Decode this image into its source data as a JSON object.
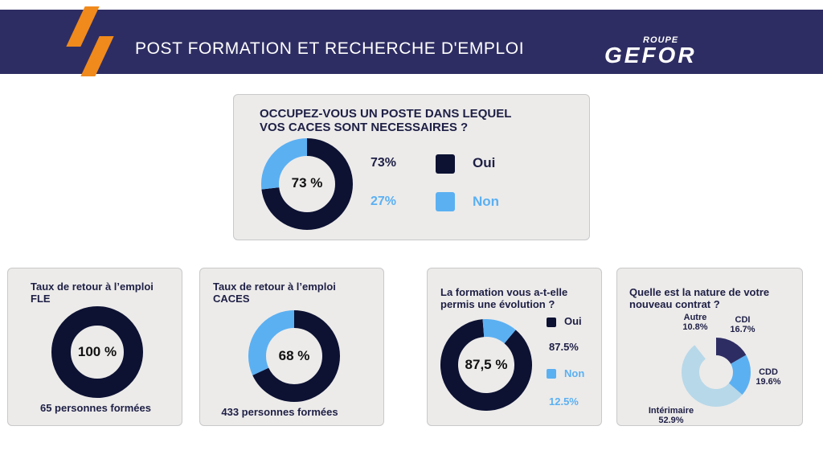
{
  "header": {
    "title": "POST FORMATION ET RECHERCHE D'EMPLOI",
    "logo_small": "ROUPE",
    "logo_big": "GEFOR",
    "background": "#2e2d63",
    "accent": "#f08a1c"
  },
  "colors": {
    "navy": "#0d1233",
    "blue": "#5bb0f2",
    "light_blue": "#b7d8e8",
    "dark_purple": "#2e2d63"
  },
  "chart_data": [
    {
      "type": "donut",
      "title": "OCCUPEZ-VOUS UN POSTE DANS LEQUEL VOS CACES SONT NECESSAIRES ?",
      "title_lines": [
        "OCCUPEZ-VOUS UN POSTE DANS LEQUEL",
        "VOS CACES SONT NECESSAIRES ?"
      ],
      "center_label": "73 %",
      "slices": [
        {
          "label": "Oui",
          "value": 73,
          "value_label": "73%",
          "color": "#0d1233"
        },
        {
          "label": "Non",
          "value": 27,
          "value_label": "27%",
          "color": "#5bb0f2"
        }
      ]
    },
    {
      "type": "donut",
      "title_lines": [
        "Taux de retour à l’emploi",
        "FLE"
      ],
      "center_label": "100 %",
      "caption": "65 personnes formées",
      "slices": [
        {
          "label": "",
          "value": 100,
          "color": "#0d1233"
        }
      ]
    },
    {
      "type": "donut",
      "title_lines": [
        "Taux de retour à l’emploi",
        "CACES"
      ],
      "center_label": "68 %",
      "caption": "433 personnes formées",
      "slices": [
        {
          "label": "",
          "value": 68,
          "color": "#0d1233"
        },
        {
          "label": "",
          "value": 32,
          "color": "#5bb0f2"
        }
      ]
    },
    {
      "type": "donut",
      "title_lines": [
        "La formation vous a-t-elle",
        "permis une évolution ?"
      ],
      "center_label": "87,5 %",
      "slices": [
        {
          "label": "Oui",
          "value": 87.5,
          "value_label": "87.5%",
          "color": "#0d1233"
        },
        {
          "label": "Non",
          "value": 12.5,
          "value_label": "12.5%",
          "color": "#5bb0f2"
        }
      ]
    },
    {
      "type": "donut",
      "title_lines": [
        "Quelle est la nature de votre",
        "nouveau contrat ?"
      ],
      "slices": [
        {
          "label": "CDI",
          "value": 16.7,
          "value_label": "16.7%",
          "color": "#2e2d63"
        },
        {
          "label": "CDD",
          "value": 19.6,
          "value_label": "19.6%",
          "color": "#5bb0f2"
        },
        {
          "label": "Intérimaire",
          "value": 52.9,
          "value_label": "52.9%",
          "color": "#b7d8e8"
        },
        {
          "label": "Autre",
          "value": 10.8,
          "value_label": "10.8%",
          "color": "#ecebea"
        }
      ]
    }
  ]
}
